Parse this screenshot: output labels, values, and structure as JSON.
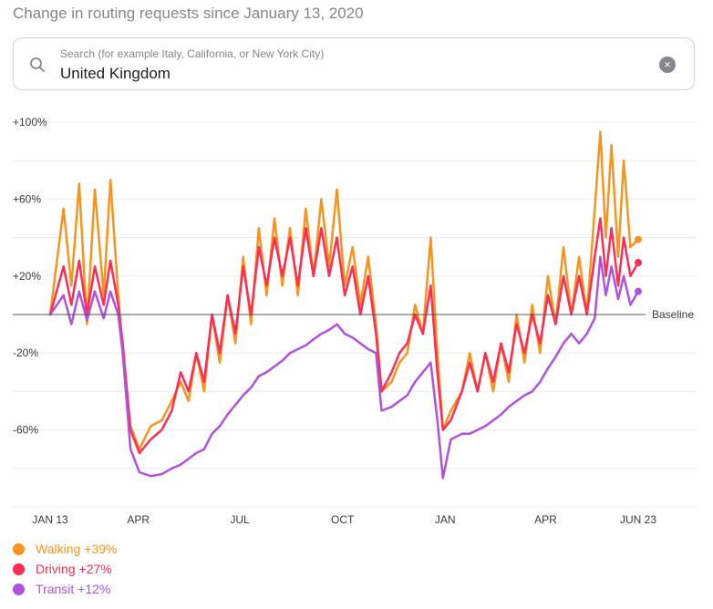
{
  "subtitle": "Change in routing requests since January 13, 2020",
  "search": {
    "placeholder": "Search (for example Italy, California, or New York City)",
    "value": "United Kingdom"
  },
  "legend": [
    {
      "label": "Walking +39%",
      "color": "#f7941d"
    },
    {
      "label": "Driving +27%",
      "color": "#ff2d55"
    },
    {
      "label": "Transit +12%",
      "color": "#af52de"
    }
  ],
  "chart_data": {
    "type": "line",
    "ylim": [
      -100,
      100
    ],
    "xlim": [
      "2020-01-13",
      "2021-06-23"
    ],
    "y_ticks": [
      {
        "value": 100,
        "label": "+100%"
      },
      {
        "value": 60,
        "label": "+60%"
      },
      {
        "value": 20,
        "label": "+20%"
      },
      {
        "value": -20,
        "label": "-20%"
      },
      {
        "value": -60,
        "label": "-60%"
      }
    ],
    "baseline": {
      "value": 0,
      "label": "Baseline"
    },
    "x_ticks": [
      {
        "date": "2020-01-13",
        "label": "JAN 13"
      },
      {
        "date": "2020-04-01",
        "label": "APR"
      },
      {
        "date": "2020-07-01",
        "label": "JUL"
      },
      {
        "date": "2020-10-01",
        "label": "OCT"
      },
      {
        "date": "2021-01-01",
        "label": "JAN"
      },
      {
        "date": "2021-04-01",
        "label": "APR"
      },
      {
        "date": "2021-06-23",
        "label": "JUN 23"
      }
    ],
    "series": [
      {
        "name": "Walking",
        "color": "#f7941d",
        "points": [
          [
            "2020-01-13",
            0
          ],
          [
            "2020-01-25",
            55
          ],
          [
            "2020-02-01",
            15
          ],
          [
            "2020-02-08",
            68
          ],
          [
            "2020-02-15",
            -5
          ],
          [
            "2020-02-22",
            65
          ],
          [
            "2020-03-01",
            10
          ],
          [
            "2020-03-07",
            70
          ],
          [
            "2020-03-14",
            10
          ],
          [
            "2020-03-18",
            -20
          ],
          [
            "2020-03-25",
            -58
          ],
          [
            "2020-04-02",
            -70
          ],
          [
            "2020-04-12",
            -58
          ],
          [
            "2020-04-22",
            -55
          ],
          [
            "2020-05-01",
            -45
          ],
          [
            "2020-05-09",
            -35
          ],
          [
            "2020-05-16",
            -45
          ],
          [
            "2020-05-23",
            -20
          ],
          [
            "2020-05-30",
            -40
          ],
          [
            "2020-06-06",
            0
          ],
          [
            "2020-06-13",
            -25
          ],
          [
            "2020-06-20",
            10
          ],
          [
            "2020-06-27",
            -15
          ],
          [
            "2020-07-04",
            30
          ],
          [
            "2020-07-11",
            -5
          ],
          [
            "2020-07-18",
            45
          ],
          [
            "2020-07-25",
            10
          ],
          [
            "2020-08-01",
            50
          ],
          [
            "2020-08-08",
            15
          ],
          [
            "2020-08-15",
            45
          ],
          [
            "2020-08-22",
            10
          ],
          [
            "2020-08-29",
            55
          ],
          [
            "2020-09-05",
            20
          ],
          [
            "2020-09-12",
            60
          ],
          [
            "2020-09-19",
            25
          ],
          [
            "2020-09-26",
            65
          ],
          [
            "2020-10-03",
            15
          ],
          [
            "2020-10-10",
            35
          ],
          [
            "2020-10-17",
            5
          ],
          [
            "2020-10-24",
            30
          ],
          [
            "2020-10-31",
            -5
          ],
          [
            "2020-11-05",
            -40
          ],
          [
            "2020-11-14",
            -35
          ],
          [
            "2020-11-21",
            -25
          ],
          [
            "2020-11-28",
            -20
          ],
          [
            "2020-12-05",
            5
          ],
          [
            "2020-12-12",
            -10
          ],
          [
            "2020-12-19",
            40
          ],
          [
            "2020-12-25",
            -20
          ],
          [
            "2020-12-30",
            -60
          ],
          [
            "2021-01-06",
            -50
          ],
          [
            "2021-01-16",
            -40
          ],
          [
            "2021-01-23",
            -20
          ],
          [
            "2021-01-30",
            -40
          ],
          [
            "2021-02-06",
            -20
          ],
          [
            "2021-02-13",
            -40
          ],
          [
            "2021-02-20",
            -15
          ],
          [
            "2021-02-27",
            -35
          ],
          [
            "2021-03-06",
            0
          ],
          [
            "2021-03-13",
            -25
          ],
          [
            "2021-03-20",
            5
          ],
          [
            "2021-03-27",
            -20
          ],
          [
            "2021-04-03",
            20
          ],
          [
            "2021-04-10",
            -5
          ],
          [
            "2021-04-17",
            35
          ],
          [
            "2021-04-24",
            0
          ],
          [
            "2021-05-01",
            30
          ],
          [
            "2021-05-08",
            0
          ],
          [
            "2021-05-15",
            55
          ],
          [
            "2021-05-20",
            95
          ],
          [
            "2021-05-25",
            40
          ],
          [
            "2021-05-30",
            88
          ],
          [
            "2021-06-05",
            30
          ],
          [
            "2021-06-10",
            80
          ],
          [
            "2021-06-16",
            35
          ],
          [
            "2021-06-23",
            39
          ]
        ]
      },
      {
        "name": "Driving",
        "color": "#ff2d55",
        "points": [
          [
            "2020-01-13",
            0
          ],
          [
            "2020-01-25",
            25
          ],
          [
            "2020-02-01",
            5
          ],
          [
            "2020-02-08",
            28
          ],
          [
            "2020-02-15",
            0
          ],
          [
            "2020-02-22",
            25
          ],
          [
            "2020-03-01",
            5
          ],
          [
            "2020-03-07",
            28
          ],
          [
            "2020-03-14",
            5
          ],
          [
            "2020-03-18",
            -15
          ],
          [
            "2020-03-25",
            -60
          ],
          [
            "2020-04-02",
            -72
          ],
          [
            "2020-04-12",
            -65
          ],
          [
            "2020-04-22",
            -60
          ],
          [
            "2020-05-01",
            -50
          ],
          [
            "2020-05-09",
            -30
          ],
          [
            "2020-05-16",
            -40
          ],
          [
            "2020-05-23",
            -20
          ],
          [
            "2020-05-30",
            -35
          ],
          [
            "2020-06-06",
            0
          ],
          [
            "2020-06-13",
            -20
          ],
          [
            "2020-06-20",
            10
          ],
          [
            "2020-06-27",
            -10
          ],
          [
            "2020-07-04",
            25
          ],
          [
            "2020-07-11",
            0
          ],
          [
            "2020-07-18",
            35
          ],
          [
            "2020-07-25",
            15
          ],
          [
            "2020-08-01",
            40
          ],
          [
            "2020-08-08",
            20
          ],
          [
            "2020-08-15",
            40
          ],
          [
            "2020-08-22",
            15
          ],
          [
            "2020-08-29",
            45
          ],
          [
            "2020-09-05",
            20
          ],
          [
            "2020-09-12",
            45
          ],
          [
            "2020-09-19",
            20
          ],
          [
            "2020-09-26",
            40
          ],
          [
            "2020-10-03",
            10
          ],
          [
            "2020-10-10",
            25
          ],
          [
            "2020-10-17",
            0
          ],
          [
            "2020-10-24",
            20
          ],
          [
            "2020-10-31",
            -10
          ],
          [
            "2020-11-05",
            -40
          ],
          [
            "2020-11-14",
            -30
          ],
          [
            "2020-11-21",
            -20
          ],
          [
            "2020-11-28",
            -15
          ],
          [
            "2020-12-05",
            0
          ],
          [
            "2020-12-12",
            -10
          ],
          [
            "2020-12-19",
            15
          ],
          [
            "2020-12-25",
            -30
          ],
          [
            "2020-12-30",
            -60
          ],
          [
            "2021-01-06",
            -55
          ],
          [
            "2021-01-16",
            -40
          ],
          [
            "2021-01-23",
            -25
          ],
          [
            "2021-01-30",
            -40
          ],
          [
            "2021-02-06",
            -20
          ],
          [
            "2021-02-13",
            -35
          ],
          [
            "2021-02-20",
            -15
          ],
          [
            "2021-02-27",
            -30
          ],
          [
            "2021-03-06",
            -5
          ],
          [
            "2021-03-13",
            -20
          ],
          [
            "2021-03-20",
            0
          ],
          [
            "2021-03-27",
            -15
          ],
          [
            "2021-04-03",
            10
          ],
          [
            "2021-04-10",
            -5
          ],
          [
            "2021-04-17",
            20
          ],
          [
            "2021-04-24",
            0
          ],
          [
            "2021-05-01",
            20
          ],
          [
            "2021-05-08",
            0
          ],
          [
            "2021-05-15",
            30
          ],
          [
            "2021-05-20",
            50
          ],
          [
            "2021-05-25",
            20
          ],
          [
            "2021-05-30",
            45
          ],
          [
            "2021-06-05",
            15
          ],
          [
            "2021-06-10",
            40
          ],
          [
            "2021-06-16",
            20
          ],
          [
            "2021-06-23",
            27
          ]
        ]
      },
      {
        "name": "Transit",
        "color": "#af52de",
        "points": [
          [
            "2020-01-13",
            0
          ],
          [
            "2020-01-25",
            10
          ],
          [
            "2020-02-01",
            -5
          ],
          [
            "2020-02-08",
            12
          ],
          [
            "2020-02-15",
            -3
          ],
          [
            "2020-02-22",
            12
          ],
          [
            "2020-03-01",
            -2
          ],
          [
            "2020-03-07",
            12
          ],
          [
            "2020-03-14",
            0
          ],
          [
            "2020-03-18",
            -20
          ],
          [
            "2020-03-25",
            -70
          ],
          [
            "2020-04-02",
            -82
          ],
          [
            "2020-04-12",
            -84
          ],
          [
            "2020-04-22",
            -83
          ],
          [
            "2020-05-01",
            -80
          ],
          [
            "2020-05-09",
            -78
          ],
          [
            "2020-05-16",
            -75
          ],
          [
            "2020-05-23",
            -72
          ],
          [
            "2020-05-30",
            -70
          ],
          [
            "2020-06-06",
            -62
          ],
          [
            "2020-06-13",
            -58
          ],
          [
            "2020-06-20",
            -52
          ],
          [
            "2020-06-27",
            -47
          ],
          [
            "2020-07-04",
            -42
          ],
          [
            "2020-07-11",
            -38
          ],
          [
            "2020-07-18",
            -32
          ],
          [
            "2020-07-25",
            -30
          ],
          [
            "2020-08-01",
            -27
          ],
          [
            "2020-08-08",
            -24
          ],
          [
            "2020-08-15",
            -20
          ],
          [
            "2020-08-22",
            -18
          ],
          [
            "2020-08-29",
            -16
          ],
          [
            "2020-09-05",
            -13
          ],
          [
            "2020-09-12",
            -10
          ],
          [
            "2020-09-19",
            -8
          ],
          [
            "2020-09-26",
            -5
          ],
          [
            "2020-10-03",
            -10
          ],
          [
            "2020-10-10",
            -12
          ],
          [
            "2020-10-17",
            -15
          ],
          [
            "2020-10-24",
            -18
          ],
          [
            "2020-10-31",
            -20
          ],
          [
            "2020-11-05",
            -50
          ],
          [
            "2020-11-14",
            -48
          ],
          [
            "2020-11-21",
            -45
          ],
          [
            "2020-11-28",
            -42
          ],
          [
            "2020-12-05",
            -35
          ],
          [
            "2020-12-12",
            -30
          ],
          [
            "2020-12-19",
            -25
          ],
          [
            "2020-12-25",
            -55
          ],
          [
            "2020-12-30",
            -85
          ],
          [
            "2021-01-06",
            -65
          ],
          [
            "2021-01-16",
            -62
          ],
          [
            "2021-01-23",
            -62
          ],
          [
            "2021-01-30",
            -60
          ],
          [
            "2021-02-06",
            -58
          ],
          [
            "2021-02-13",
            -55
          ],
          [
            "2021-02-20",
            -52
          ],
          [
            "2021-02-27",
            -48
          ],
          [
            "2021-03-06",
            -45
          ],
          [
            "2021-03-13",
            -42
          ],
          [
            "2021-03-20",
            -40
          ],
          [
            "2021-03-27",
            -35
          ],
          [
            "2021-04-03",
            -28
          ],
          [
            "2021-04-10",
            -22
          ],
          [
            "2021-04-17",
            -15
          ],
          [
            "2021-04-24",
            -10
          ],
          [
            "2021-05-01",
            -15
          ],
          [
            "2021-05-08",
            -10
          ],
          [
            "2021-05-15",
            -2
          ],
          [
            "2021-05-20",
            30
          ],
          [
            "2021-05-25",
            10
          ],
          [
            "2021-05-30",
            25
          ],
          [
            "2021-06-05",
            8
          ],
          [
            "2021-06-10",
            20
          ],
          [
            "2021-06-16",
            5
          ],
          [
            "2021-06-23",
            12
          ]
        ]
      }
    ]
  }
}
